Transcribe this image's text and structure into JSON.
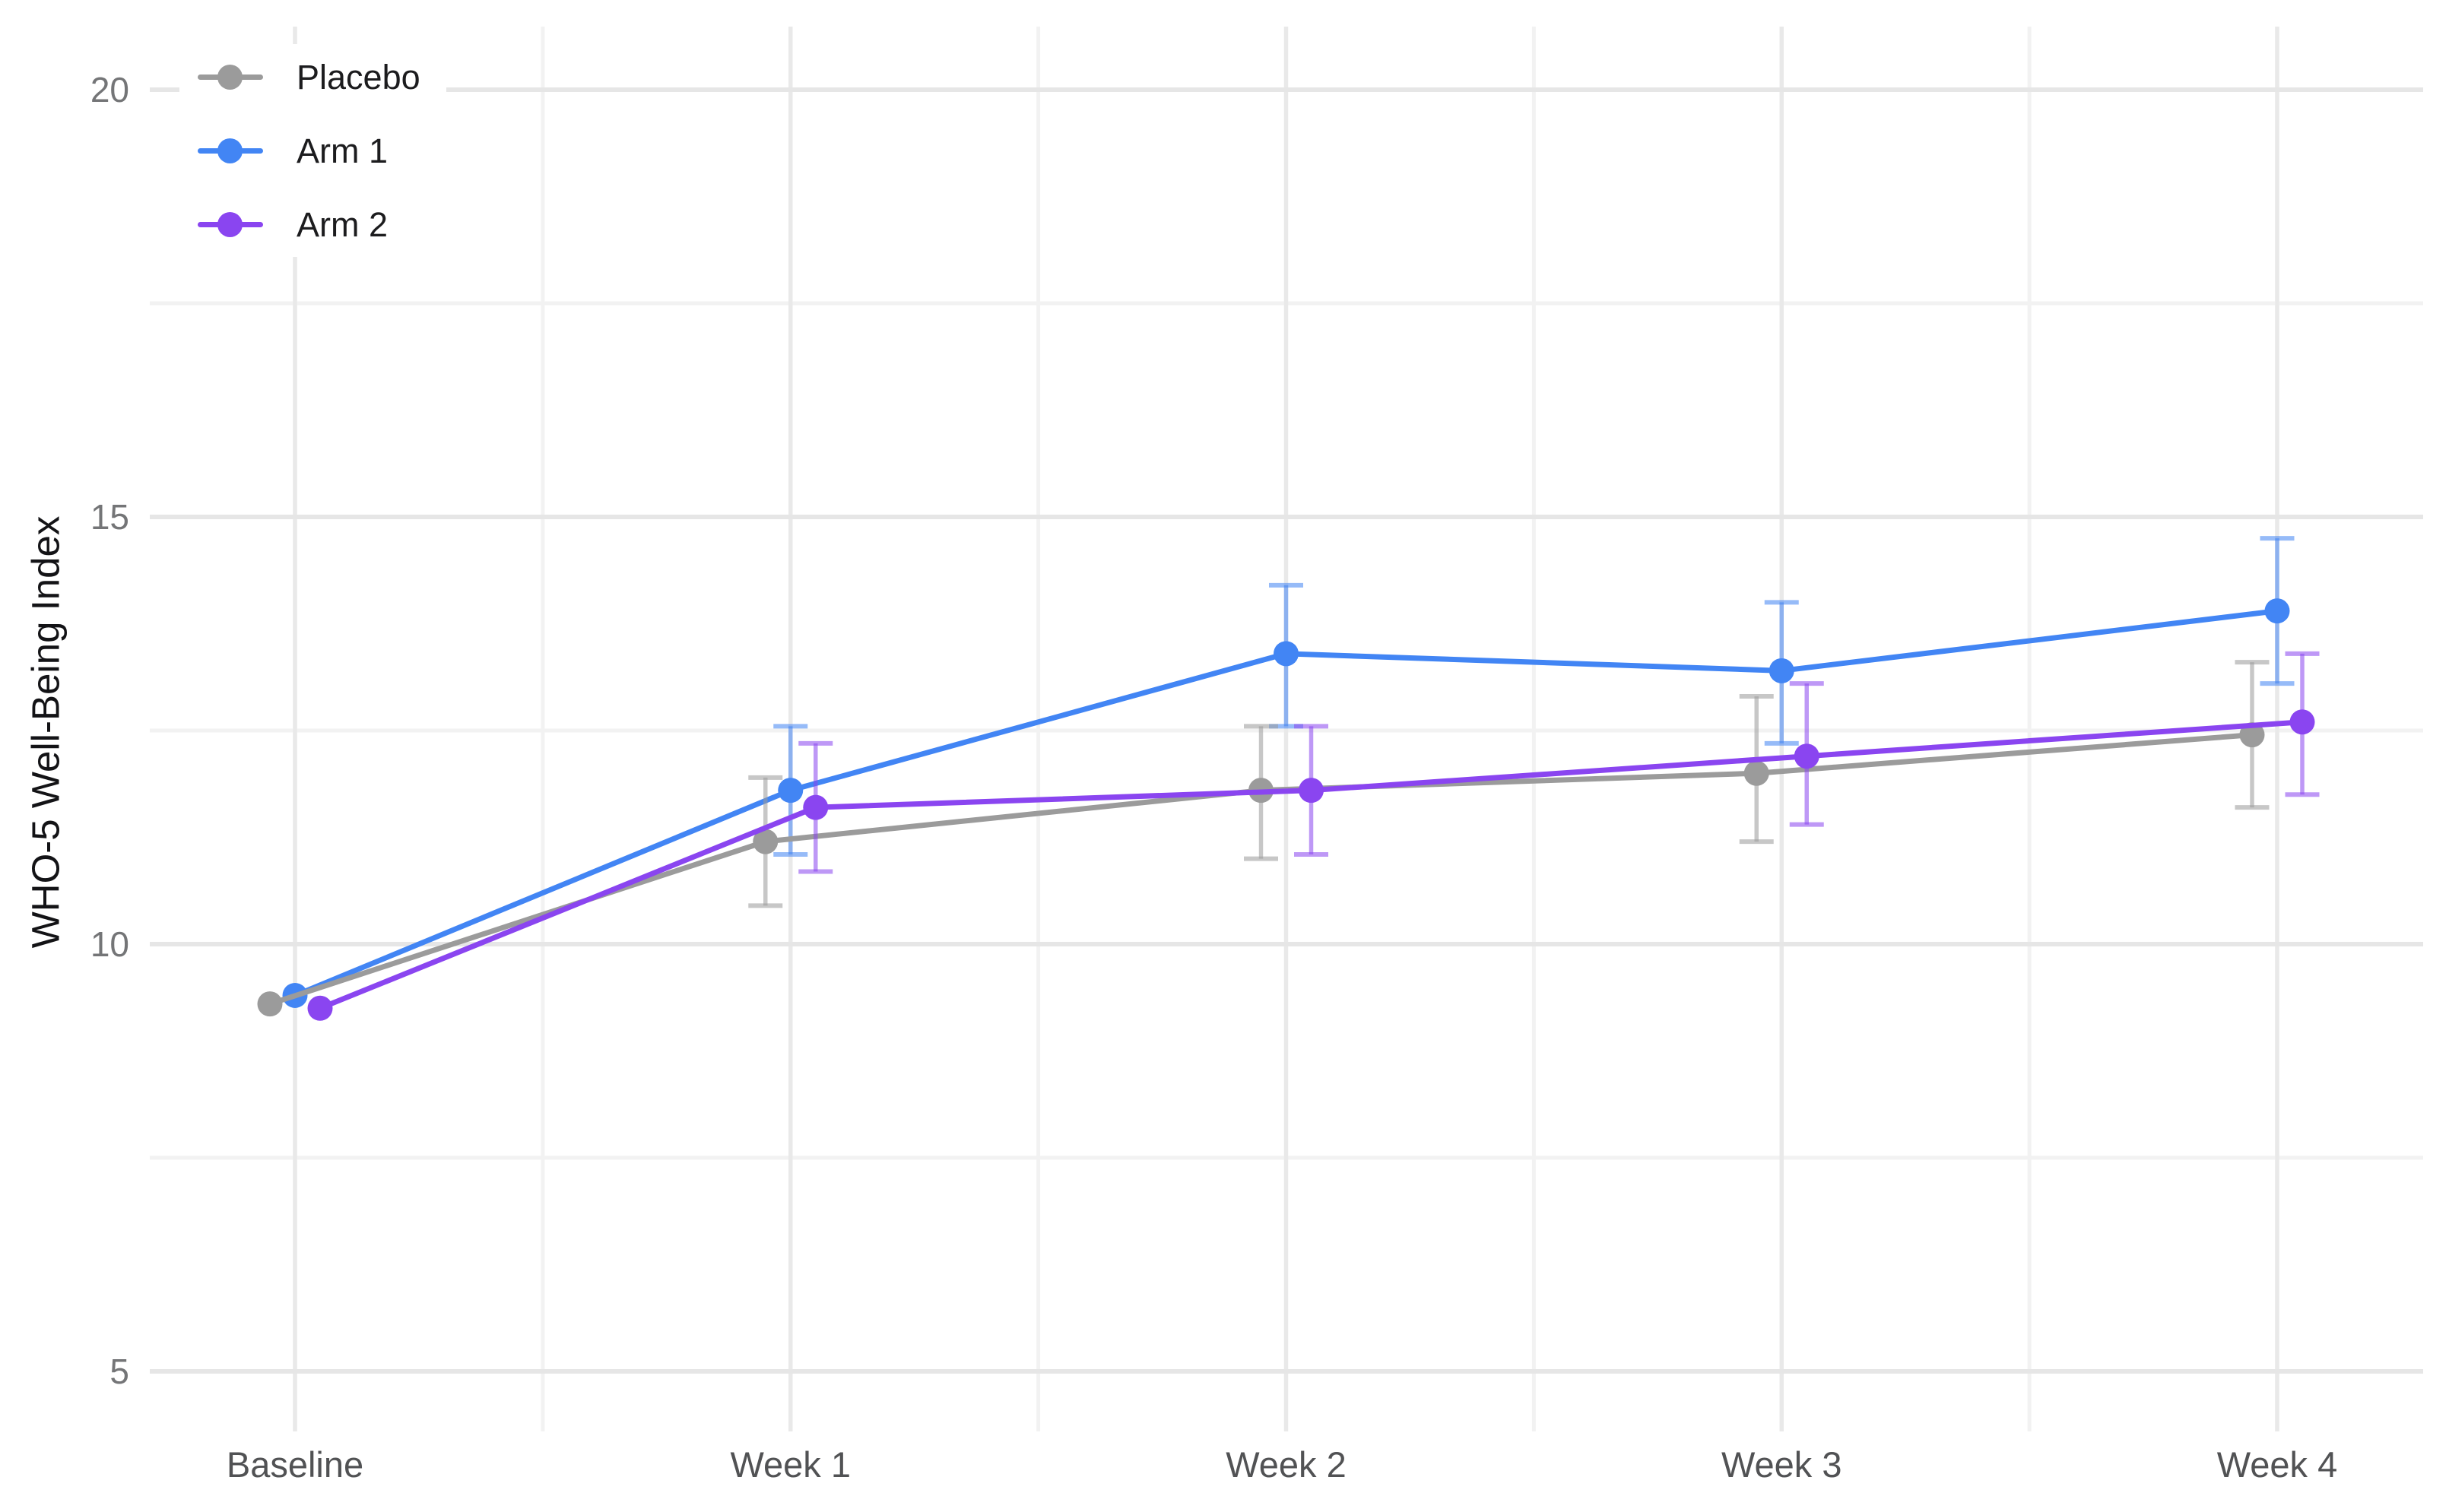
{
  "legend": {
    "items": [
      {
        "label": "Placebo",
        "color": "#9b9b9b"
      },
      {
        "label": "Arm 1",
        "color": "#4285f4"
      },
      {
        "label": "Arm 2",
        "color": "#8a45f0"
      }
    ]
  },
  "chart_data": {
    "type": "line",
    "title": "",
    "xlabel": "",
    "ylabel": "WHO-5 Well-Being Index",
    "categories": [
      "Baseline",
      "Week 1",
      "Week 2",
      "Week 3",
      "Week 4"
    ],
    "y_ticks": [
      20,
      15,
      10,
      5
    ],
    "y_minor_ticks": [
      17.5,
      12.5,
      7.5
    ],
    "ylim": [
      4.3,
      20.75
    ],
    "grid": true,
    "legend_position": "top-left",
    "error_bars": true,
    "series": [
      {
        "name": "Placebo",
        "color": "#9b9b9b",
        "values": [
          9.3,
          11.2,
          11.8,
          12.0,
          12.45
        ],
        "err_low": [
          null,
          10.45,
          11.0,
          11.2,
          11.6
        ],
        "err_high": [
          null,
          11.95,
          12.55,
          12.9,
          13.3
        ]
      },
      {
        "name": "Arm 1",
        "color": "#4285f4",
        "values": [
          9.4,
          11.8,
          13.4,
          13.2,
          13.9
        ],
        "err_low": [
          null,
          11.05,
          12.55,
          12.35,
          13.05
        ],
        "err_high": [
          null,
          12.55,
          14.2,
          14.0,
          14.75
        ]
      },
      {
        "name": "Arm 2",
        "color": "#8a45f0",
        "values": [
          9.25,
          11.6,
          11.8,
          12.2,
          12.6
        ],
        "err_low": [
          null,
          10.85,
          11.05,
          11.4,
          11.75
        ],
        "err_high": [
          null,
          12.35,
          12.55,
          13.05,
          13.4
        ]
      }
    ]
  }
}
